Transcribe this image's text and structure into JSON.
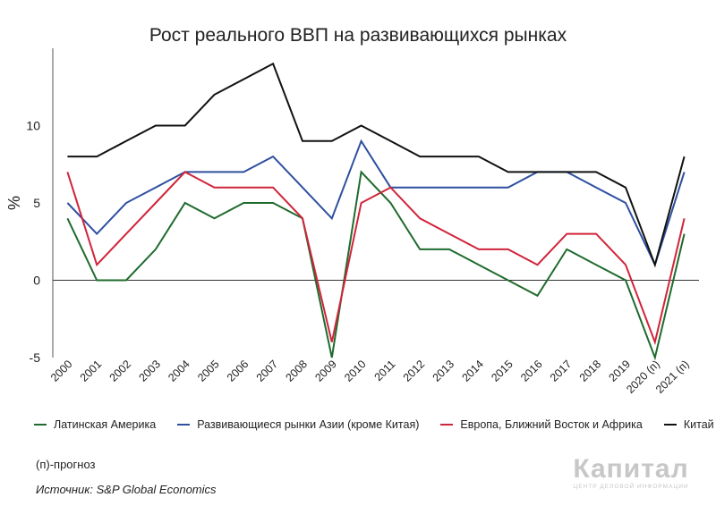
{
  "title": "Рост реального ВВП на развивающихся рынках",
  "note": "(п)-прогноз",
  "source": "Источник: S&P Global Economics",
  "logo": {
    "main": "Капитал",
    "sub": "ЦЕНТР ДЕЛОВОЙ ИНФОРМАЦИИ"
  },
  "colors": {
    "latam": "#1f6b2e",
    "asia": "#2e4fa0",
    "emea": "#d0243a",
    "china": "#111111"
  },
  "chart_data": {
    "type": "line",
    "ylabel": "%",
    "ylim": [
      -5,
      15
    ],
    "yticks": [
      -5,
      0,
      5,
      10
    ],
    "categories": [
      "2000",
      "2001",
      "2002",
      "2003",
      "2004",
      "2005",
      "2006",
      "2007",
      "2008",
      "2009",
      "2010",
      "2011",
      "2012",
      "2013",
      "2014",
      "2015",
      "2016",
      "2017",
      "2018",
      "2019",
      "2020 (п)",
      "2021 (п)"
    ],
    "legend_position": "bottom",
    "series": [
      {
        "name": "Латинская Америка",
        "color": "#1f6b2e",
        "values": [
          4,
          0,
          0,
          2,
          5,
          4,
          5,
          5,
          4,
          -5,
          7,
          5,
          2,
          2,
          1,
          0,
          -1,
          2,
          1,
          0,
          -5,
          3
        ]
      },
      {
        "name": "Развивающиеся рынки Азии (кроме Китая)",
        "color": "#2e4fa0",
        "values": [
          5,
          3,
          5,
          6,
          7,
          7,
          7,
          8,
          6,
          4,
          9,
          6,
          6,
          6,
          6,
          6,
          7,
          7,
          6,
          5,
          1,
          7
        ]
      },
      {
        "name": "Европа, Ближний Восток и Африка",
        "color": "#d0243a",
        "values": [
          7,
          1,
          3,
          5,
          7,
          6,
          6,
          6,
          4,
          -4,
          5,
          6,
          4,
          3,
          2,
          2,
          1,
          3,
          3,
          1,
          -4,
          4
        ]
      },
      {
        "name": "Китай",
        "color": "#111111",
        "values": [
          8,
          8,
          9,
          10,
          10,
          12,
          13,
          14,
          9,
          9,
          10,
          9,
          8,
          8,
          8,
          7,
          7,
          7,
          7,
          6,
          1,
          8
        ]
      }
    ]
  }
}
